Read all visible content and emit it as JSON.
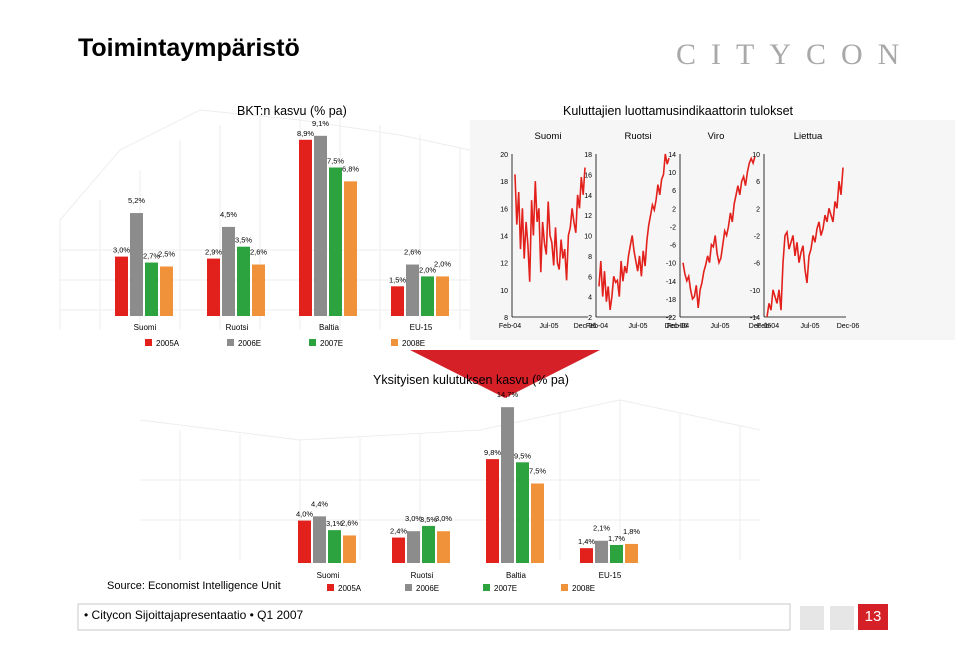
{
  "title": "Toimintaympäristö",
  "logo_text": "CITYCON",
  "colors": {
    "2005A": "#e3211c",
    "2006E": "#8c8c8c",
    "2007E": "#2ca33f",
    "2008E": "#f0923a",
    "line": "#e3211c",
    "accent": "#d62027"
  },
  "gdp_chart": {
    "title": "BKT:n kasvu (% pa)",
    "chart_data": {
      "type": "bar",
      "title": "BKT:n kasvu (% pa)",
      "categories": [
        "Suomi",
        "Ruotsi",
        "Baltia",
        "EU-15"
      ],
      "series": [
        {
          "name": "2005A",
          "values": [
            3.0,
            2.9,
            8.9,
            1.5
          ],
          "labels": [
            "3,0%",
            "2,9%",
            "8,9%",
            "1,5%"
          ]
        },
        {
          "name": "2006E",
          "values": [
            5.2,
            4.5,
            9.1,
            2.6
          ],
          "labels": [
            "5,2%",
            "4,5%",
            "9,1%",
            "2,6%"
          ]
        },
        {
          "name": "2007E",
          "values": [
            2.7,
            3.5,
            7.5,
            2.0
          ],
          "labels": [
            "2,7%",
            "3,5%",
            "7,5%",
            "2,0%"
          ]
        },
        {
          "name": "2008E",
          "values": [
            2.5,
            2.6,
            6.8,
            2.0
          ],
          "labels": [
            "2,5%",
            "2,6%",
            "6,8%",
            "2,0%"
          ]
        }
      ],
      "legend": [
        "2005A",
        "2006E",
        "2007E",
        "2008E"
      ],
      "legend_position": "bottom"
    }
  },
  "confidence_chart": {
    "title": "Kuluttajien luottamusindikaattorin tulokset",
    "chart_data": {
      "type": "line",
      "title": "Kuluttajien luottamusindikaattorin tulokset",
      "panels": [
        {
          "name": "Suomi",
          "ylim": [
            8,
            20
          ],
          "yticks": [
            "8",
            "10",
            "12",
            "14",
            "16",
            "18",
            "20"
          ],
          "xticks": [
            "Feb-04",
            "Jul-05",
            "Dec-06"
          ],
          "values": [
            18.5,
            14.8,
            17.2,
            13.0,
            16.0,
            12.3,
            15.0,
            13.3,
            10.6,
            16.6,
            14.0,
            18.0,
            15.0,
            16.0,
            11.3,
            15.0,
            13.4,
            12.6,
            16.5,
            14.0,
            13.5,
            11.8,
            14.6,
            12.0,
            11.5,
            13.7,
            12.3,
            13.0,
            10.7,
            14.0,
            14.6,
            16.0,
            15.0,
            14.2,
            17.0,
            16.0,
            18.3,
            17.0,
            19.0
          ]
        },
        {
          "name": "Ruotsi",
          "ylim": [
            2,
            18
          ],
          "yticks": [
            "2",
            "4",
            "6",
            "8",
            "10",
            "12",
            "14",
            "16",
            "18"
          ],
          "xticks": [
            "Feb-04",
            "Jul-05",
            "Dec-06"
          ],
          "values": [
            5.0,
            7.5,
            4.0,
            6.5,
            3.5,
            5.0,
            2.7,
            4.0,
            6.0,
            5.4,
            5.6,
            4.0,
            7.5,
            5.5,
            7.0,
            6.3,
            8.0,
            9.0,
            10.0,
            8.5,
            7.5,
            6.5,
            8.0,
            6.0,
            8.5,
            7.0,
            9.5,
            11.0,
            12.0,
            13.0,
            12.5,
            13.5,
            15.0,
            14.0,
            15.5,
            16.0,
            18.0,
            17.0,
            17.6
          ]
        },
        {
          "name": "Viro",
          "ylim": [
            -22,
            14
          ],
          "yticks": [
            "-22",
            "-18",
            "-14",
            "-10",
            "-6",
            "-2",
            "2",
            "6",
            "10",
            "14"
          ],
          "xticks": [
            "Feb-04",
            "Jul-05",
            "Dec-06"
          ],
          "values": [
            -10.0,
            -12.5,
            -14.0,
            -13.0,
            -16.0,
            -18.0,
            -17.5,
            -15.0,
            -20.0,
            -16.0,
            -14.5,
            -12.0,
            -10.5,
            -8.5,
            -10.0,
            -6.0,
            -6.5,
            -4.0,
            -8.0,
            -10.0,
            -9.0,
            -6.0,
            -3.0,
            -4.0,
            -2.0,
            1.0,
            -1.0,
            3.0,
            5.0,
            7.0,
            5.0,
            8.0,
            9.0,
            7.0,
            10.0,
            12.0,
            13.0,
            12.0,
            13.5
          ]
        },
        {
          "name": "Liettua",
          "ylim": [
            -14,
            10
          ],
          "yticks": [
            "-14",
            "-10",
            "-6",
            "-2",
            "2",
            "6",
            "10"
          ],
          "xticks": [
            "Feb-04",
            "Jul-05",
            "Dec-06"
          ],
          "values": [
            -14.0,
            -12.0,
            -13.0,
            -10.0,
            -11.0,
            -12.0,
            -10.0,
            -13.0,
            -6.0,
            -2.0,
            -1.5,
            -4.0,
            -3.0,
            -2.0,
            -5.0,
            -3.0,
            -6.0,
            -4.5,
            -3.5,
            -7.0,
            -9.0,
            -5.0,
            -4.0,
            -2.0,
            -3.0,
            -1.0,
            0.0,
            -2.0,
            -1.0,
            1.0,
            0.0,
            2.0,
            1.0,
            0.0,
            3.0,
            2.0,
            6.0,
            4.0,
            8.0
          ]
        }
      ]
    }
  },
  "consumption_chart": {
    "title": "Yksityisen kulutuksen kasvu (% pa)",
    "chart_data": {
      "type": "bar",
      "title": "Yksityisen kulutuksen kasvu (% pa)",
      "categories": [
        "Suomi",
        "Ruotsi",
        "Baltia",
        "EU-15"
      ],
      "series": [
        {
          "name": "2005A",
          "values": [
            4.0,
            2.4,
            9.8,
            1.4
          ],
          "labels": [
            "4,0%",
            "2,4%",
            "9,8%",
            "1,4%"
          ]
        },
        {
          "name": "2006E",
          "values": [
            4.4,
            3.0,
            14.7,
            2.1
          ],
          "labels": [
            "4,4%",
            "3,0%",
            "14,7%",
            "2,1%"
          ]
        },
        {
          "name": "2007E",
          "values": [
            3.1,
            3.5,
            9.5,
            1.7
          ],
          "labels": [
            "3,1%",
            "3,5%",
            "9,5%",
            "1,7%"
          ]
        },
        {
          "name": "2008E",
          "values": [
            2.6,
            3.0,
            7.5,
            1.8
          ],
          "labels": [
            "2,6%",
            "3,0%",
            "7,5%",
            "1,8%"
          ]
        }
      ],
      "legend": [
        "2005A",
        "2006E",
        "2007E",
        "2008E"
      ],
      "legend_position": "bottom"
    }
  },
  "source": "Source: Economist Intelligence Unit",
  "footer": "• Citycon Sijoittajapresentaatio • Q1 2007",
  "page_number": "13"
}
